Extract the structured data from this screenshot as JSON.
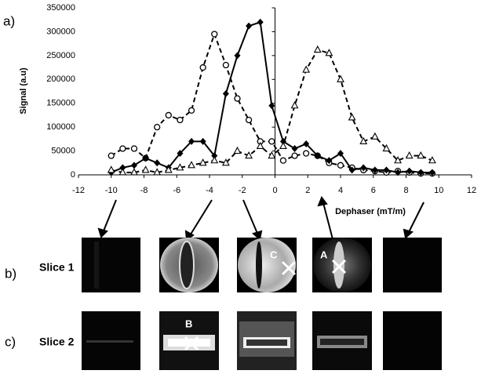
{
  "chart_data": {
    "type": "line",
    "ylabel": "Signal (a.u)",
    "xlabel": "Dephaser (mT/m)",
    "x": [
      -10,
      -9.3,
      -8.6,
      -7.9,
      -7.2,
      -6.5,
      -5.8,
      -5.1,
      -4.4,
      -3.7,
      -3,
      -2.3,
      -1.6,
      -0.9,
      -0.2,
      0.5,
      1.2,
      1.9,
      2.6,
      3.3,
      4,
      4.7,
      5.4,
      6.1,
      6.8,
      7.5,
      8.2,
      8.9,
      9.6
    ],
    "series": [
      {
        "color": "#000000",
        "marker": "circle",
        "line_style": "dashed",
        "values": [
          40000,
          55000,
          55000,
          35000,
          100000,
          125000,
          115000,
          135000,
          225000,
          295000,
          230000,
          160000,
          115000,
          70000,
          70000,
          30000,
          40000,
          45000,
          40000,
          25000,
          20000,
          15000,
          10000,
          8000,
          5000,
          8000,
          5000,
          3000,
          3000
        ]
      },
      {
        "color": "#000000",
        "marker": "diamond",
        "line_style": "solid",
        "values": [
          5000,
          15000,
          20000,
          35000,
          25000,
          15000,
          45000,
          70000,
          70000,
          40000,
          170000,
          250000,
          312000,
          320000,
          145000,
          70000,
          55000,
          65000,
          40000,
          30000,
          45000,
          10000,
          15000,
          10000,
          10000,
          5000,
          8000,
          5000,
          5000
        ]
      },
      {
        "color": "#000000",
        "marker": "triangle",
        "line_style": "dashed",
        "values": [
          10000,
          5000,
          5000,
          10000,
          5000,
          10000,
          15000,
          20000,
          25000,
          30000,
          25000,
          50000,
          40000,
          60000,
          40000,
          60000,
          145000,
          220000,
          262000,
          255000,
          200000,
          120000,
          70000,
          80000,
          55000,
          30000,
          40000,
          40000,
          30000
        ]
      }
    ],
    "xlim": [
      -12,
      12
    ],
    "xticks": [
      -12,
      -10,
      -8,
      -6,
      -4,
      -2,
      0,
      2,
      4,
      6,
      8,
      10,
      12
    ],
    "ylim": [
      0,
      350000
    ],
    "yticks": [
      0,
      50000,
      100000,
      150000,
      200000,
      250000,
      300000,
      350000
    ],
    "grid": false
  },
  "panels": {
    "labels": [
      "a)",
      "b)",
      "c)"
    ],
    "slices": [
      "Slice 1",
      "Slice 2"
    ],
    "markers": [
      "A",
      "B",
      "C"
    ]
  }
}
